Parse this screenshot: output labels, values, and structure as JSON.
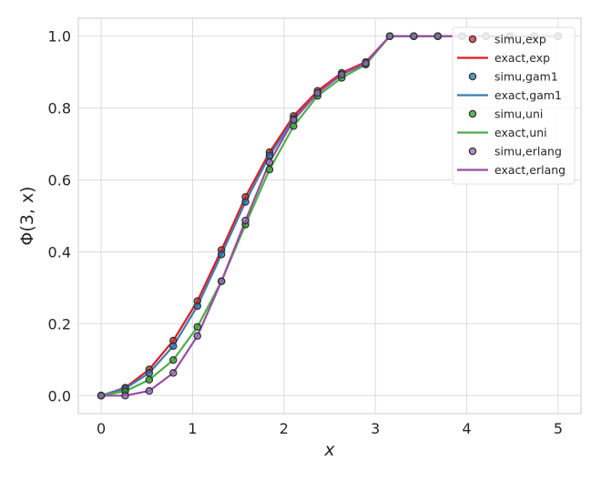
{
  "chart_data": {
    "type": "line",
    "xlabel": "x",
    "ylabel": "Φ(3, x)",
    "xlim": [
      -0.25,
      5.25
    ],
    "ylim": [
      -0.05,
      1.05
    ],
    "xticks": [
      0,
      1,
      2,
      3,
      4,
      5
    ],
    "yticks": [
      0.0,
      0.2,
      0.4,
      0.6,
      0.8,
      1.0
    ],
    "xtick_labels": [
      "0",
      "1",
      "2",
      "3",
      "4",
      "5"
    ],
    "ytick_labels": [
      "0.0",
      "0.2",
      "0.4",
      "0.6",
      "0.8",
      "1.0"
    ],
    "grid": true,
    "legend_position": "top-right",
    "x": [
      0,
      0.263,
      0.526,
      0.789,
      1.053,
      1.316,
      1.579,
      1.842,
      2.105,
      2.368,
      2.632,
      2.895,
      3.158,
      3.421,
      3.684,
      3.947,
      4.211,
      4.474,
      4.737,
      5.0
    ],
    "series": [
      {
        "name": "simu,exp",
        "kind": "scatter",
        "color": "#d62728",
        "y": [
          0,
          0.022,
          0.073,
          0.153,
          0.263,
          0.405,
          0.553,
          0.677,
          0.778,
          0.848,
          0.898,
          0.928,
          1.0,
          1.0,
          1.0,
          1.0,
          1.0,
          1.0,
          1.0,
          1.0
        ]
      },
      {
        "name": "exact,exp",
        "kind": "line",
        "color": "#e41a1c",
        "y": [
          0,
          0.022,
          0.073,
          0.153,
          0.263,
          0.405,
          0.553,
          0.677,
          0.778,
          0.848,
          0.898,
          0.928,
          1.0,
          1.0,
          1.0,
          1.0,
          1.0,
          1.0,
          1.0,
          1.0
        ]
      },
      {
        "name": "simu,gam1",
        "kind": "scatter",
        "color": "#1f77b4",
        "y": [
          0,
          0.02,
          0.063,
          0.138,
          0.249,
          0.393,
          0.539,
          0.668,
          0.77,
          0.842,
          0.893,
          0.925,
          1.0,
          1.0,
          1.0,
          1.0,
          1.0,
          1.0,
          1.0,
          1.0
        ]
      },
      {
        "name": "exact,gam1",
        "kind": "line",
        "color": "#377eb8",
        "y": [
          0,
          0.02,
          0.063,
          0.138,
          0.249,
          0.393,
          0.539,
          0.668,
          0.77,
          0.842,
          0.893,
          0.925,
          1.0,
          1.0,
          1.0,
          1.0,
          1.0,
          1.0,
          1.0,
          1.0
        ]
      },
      {
        "name": "simu,uni",
        "kind": "scatter",
        "color": "#2ca02c",
        "y": [
          0,
          0.012,
          0.044,
          0.099,
          0.191,
          0.318,
          0.476,
          0.629,
          0.75,
          0.834,
          0.884,
          0.921,
          1.0,
          1.0,
          1.0,
          1.0,
          1.0,
          1.0,
          1.0,
          1.0
        ]
      },
      {
        "name": "exact,uni",
        "kind": "line",
        "color": "#4daf4a",
        "y": [
          0,
          0.012,
          0.044,
          0.099,
          0.191,
          0.318,
          0.476,
          0.629,
          0.75,
          0.834,
          0.884,
          0.921,
          1.0,
          1.0,
          1.0,
          1.0,
          1.0,
          1.0,
          1.0,
          1.0
        ]
      },
      {
        "name": "simu,erlang",
        "kind": "scatter",
        "color": "#9467bd",
        "y": [
          0,
          0.0,
          0.013,
          0.063,
          0.166,
          0.318,
          0.487,
          0.649,
          0.767,
          0.842,
          0.893,
          0.925,
          1.0,
          1.0,
          1.0,
          1.0,
          1.0,
          1.0,
          1.0,
          1.0
        ]
      },
      {
        "name": "exact,erlang",
        "kind": "line",
        "color": "#984ea3",
        "y": [
          0,
          0.0,
          0.013,
          0.063,
          0.166,
          0.318,
          0.487,
          0.649,
          0.767,
          0.842,
          0.893,
          0.925,
          1.0,
          1.0,
          1.0,
          1.0,
          1.0,
          1.0,
          1.0,
          1.0
        ]
      }
    ]
  }
}
